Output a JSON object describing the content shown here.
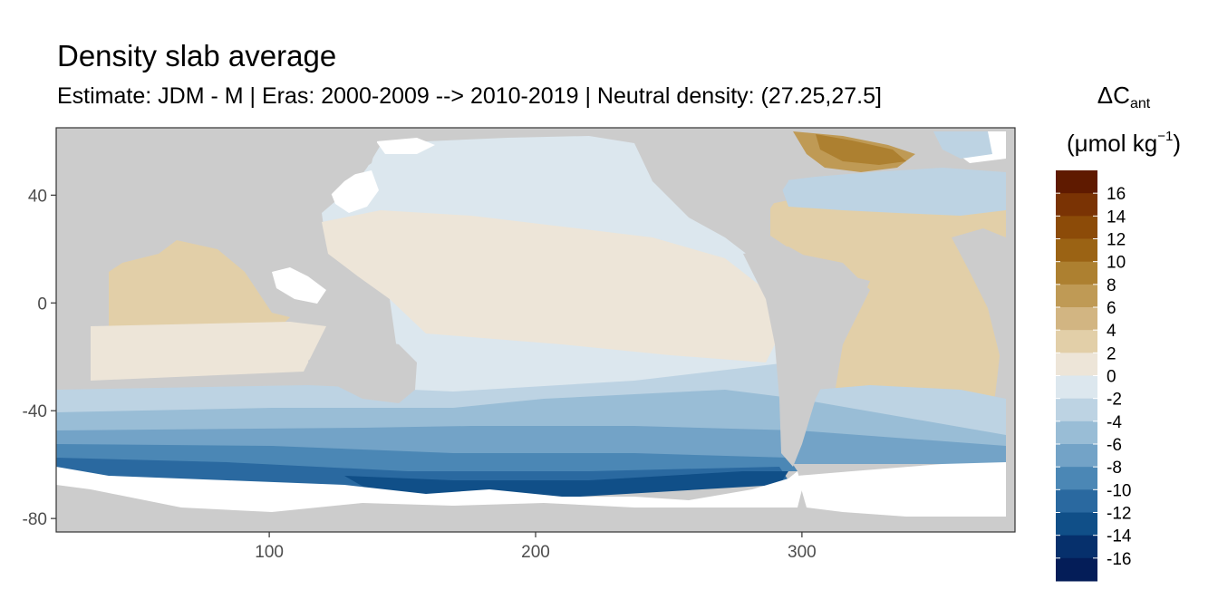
{
  "chart_data": {
    "type": "heatmap",
    "title": "Density slab average",
    "subtitle": "Estimate: JDM - M | Eras: 2000-2009 --> 2010-2019 | Neutral density: (27.25,27.5]",
    "legend": {
      "title_main": "ΔC",
      "title_sub": "ant",
      "unit_main": "(μmol kg",
      "unit_sup": "−1",
      "unit_close": ")",
      "position": "right",
      "tick_labels": [
        "16",
        "14",
        "12",
        "10",
        "8",
        "6",
        "4",
        "2",
        "0",
        "-2",
        "-4",
        "-6",
        "-8",
        "-10",
        "-12",
        "-14",
        "-16"
      ],
      "bins": [
        {
          "range": [
            16,
            18
          ],
          "color": "#5f1a00"
        },
        {
          "range": [
            14,
            16
          ],
          "color": "#7a3304"
        },
        {
          "range": [
            12,
            14
          ],
          "color": "#8c4b08"
        },
        {
          "range": [
            10,
            12
          ],
          "color": "#9b6314"
        },
        {
          "range": [
            8,
            10
          ],
          "color": "#ad8030"
        },
        {
          "range": [
            6,
            8
          ],
          "color": "#bf9a55"
        },
        {
          "range": [
            4,
            6
          ],
          "color": "#d2b582"
        },
        {
          "range": [
            2,
            4
          ],
          "color": "#e2cfa8"
        },
        {
          "range": [
            0,
            2
          ],
          "color": "#ede5d8"
        },
        {
          "range": [
            -2,
            0
          ],
          "color": "#dce7ee"
        },
        {
          "range": [
            -4,
            -2
          ],
          "color": "#bdd3e3"
        },
        {
          "range": [
            -6,
            -4
          ],
          "color": "#99bdd6"
        },
        {
          "range": [
            -8,
            -6
          ],
          "color": "#73a3c7"
        },
        {
          "range": [
            -10,
            -8
          ],
          "color": "#4b87b5"
        },
        {
          "range": [
            -12,
            -10
          ],
          "color": "#2a69a0"
        },
        {
          "range": [
            -14,
            -12
          ],
          "color": "#104f88"
        },
        {
          "range": [
            -16,
            -14
          ],
          "color": "#06306c"
        },
        {
          "range": [
            -18,
            -16
          ],
          "color": "#041d58"
        }
      ]
    },
    "x_axis": {
      "label": "",
      "ticks": [
        100,
        200,
        300
      ],
      "range": [
        20,
        380
      ]
    },
    "y_axis": {
      "label": "",
      "ticks": [
        40,
        0,
        -40,
        -80
      ],
      "range": [
        -85,
        65
      ]
    },
    "grid": false,
    "land_color": "#cccccc",
    "no_data_color": "#ffffff",
    "regions": [
      {
        "name": "",
        "lon": [
          95,
          160
        ],
        "lat": [
          -10,
          25
        ],
        "approx_value": 1
      },
      {
        "name": "",
        "lon": [
          160,
          260
        ],
        "lat": [
          -20,
          40
        ],
        "approx_value": -1
      },
      {
        "name": "",
        "lon": [
          30,
          130
        ],
        "lat": [
          -40,
          -10
        ],
        "approx_value": 1
      },
      {
        "name": "",
        "lon": [
          160,
          290
        ],
        "lat": [
          -50,
          -20
        ],
        "approx_value": -3
      },
      {
        "name": "",
        "lon": [
          20,
          300
        ],
        "lat": [
          -70,
          -50
        ],
        "approx_value": -8
      },
      {
        "name": "",
        "lon": [
          310,
          375
        ],
        "lat": [
          -30,
          40
        ],
        "approx_value": 3
      },
      {
        "name": "",
        "lon": [
          310,
          355
        ],
        "lat": [
          50,
          62
        ],
        "approx_value": 8
      }
    ]
  }
}
